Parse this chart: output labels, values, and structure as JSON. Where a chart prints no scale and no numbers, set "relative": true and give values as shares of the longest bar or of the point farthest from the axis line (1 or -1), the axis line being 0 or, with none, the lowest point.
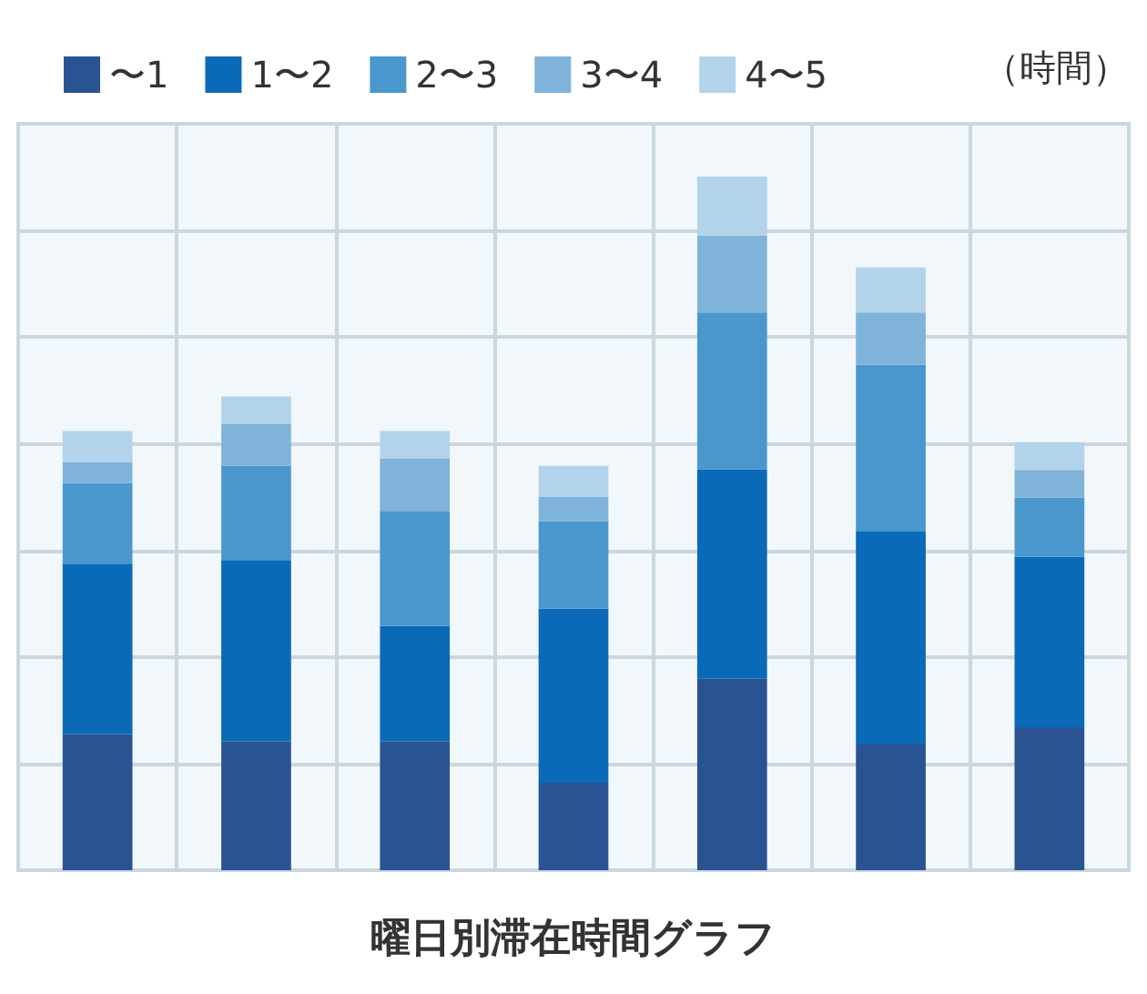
{
  "chart_data": {
    "type": "bar",
    "title": "曜日別滞在時間グラフ",
    "legend_title": "（時間）",
    "categories": [
      null,
      null,
      null,
      null,
      null,
      null,
      null
    ],
    "relative": true,
    "stacked": true,
    "grid": true,
    "legend": "top",
    "series": [
      {
        "name": "〜1",
        "color": "#2a5394",
        "values": [
          0.196,
          0.186,
          0.186,
          0.126,
          0.276,
          0.181,
          0.206
        ]
      },
      {
        "name": "1〜2",
        "color": "#0a6ab7",
        "values": [
          0.246,
          0.261,
          0.166,
          0.251,
          0.302,
          0.307,
          0.246
        ]
      },
      {
        "name": "2〜3",
        "color": "#4a97cd",
        "values": [
          0.116,
          0.136,
          0.166,
          0.126,
          0.226,
          0.241,
          0.085
        ]
      },
      {
        "name": "3〜4",
        "color": "#7fb3da",
        "values": [
          0.03,
          0.06,
          0.075,
          0.035,
          0.111,
          0.075,
          0.04
        ]
      },
      {
        "name": "4〜5",
        "color": "#b2d3ea",
        "values": [
          0.045,
          0.04,
          0.04,
          0.045,
          0.085,
          0.065,
          0.04
        ]
      }
    ]
  }
}
